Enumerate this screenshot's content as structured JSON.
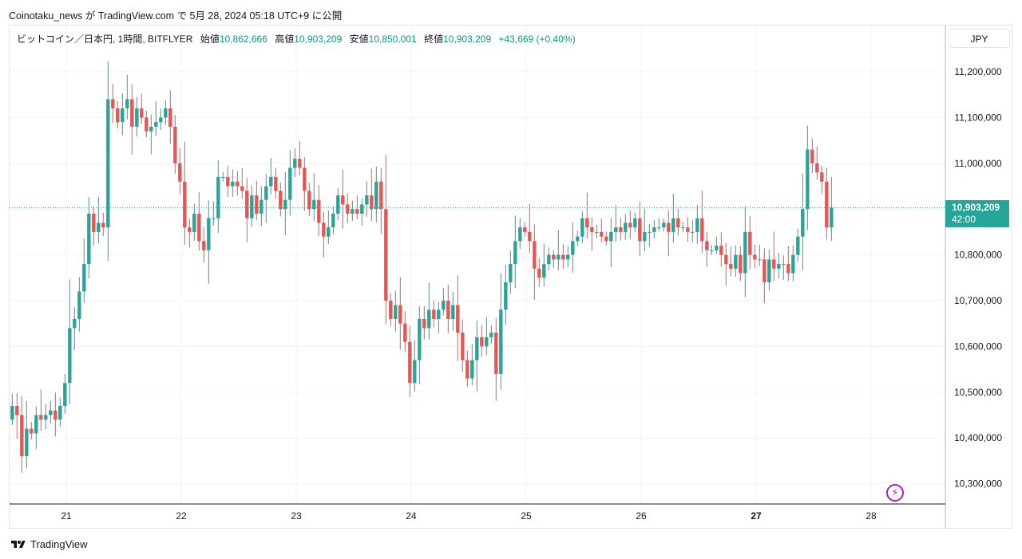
{
  "header": {
    "publisher_line": "Coinotaku_news が TradingView.com で 5月 28, 2024 05:18 UTC+9 に公開"
  },
  "legend": {
    "symbol": "ビットコイン／日本円, 1時間, BITFLYER",
    "open_label": "始値",
    "open": "10,862,666",
    "high_label": "高値",
    "high": "10,903,209",
    "low_label": "安値",
    "low": "10,850,001",
    "close_label": "終値",
    "close": "10,903,209",
    "change": "+43,669 (+0.40%)"
  },
  "currency": "JPY",
  "last_price": {
    "price": "10,903,209",
    "countdown": "42:00"
  },
  "footer": {
    "brand": "TradingView"
  },
  "colors": {
    "up": "#26a69a",
    "down": "#ef5350",
    "grid": "#f0f3fa",
    "axis_text": "#131722",
    "price_line": "#26a69a"
  },
  "chart_data": {
    "type": "candlestick",
    "timeframe": "1h",
    "ylim": [
      10250000,
      11300000
    ],
    "y_ticks": [
      11200000,
      11100000,
      11000000,
      10900000,
      10800000,
      10700000,
      10600000,
      10500000,
      10400000,
      10300000
    ],
    "y_tick_labels": [
      "11,200,000",
      "11,100,000",
      "11,000,000",
      "10,900,000",
      "10,800,000",
      "10,700,000",
      "10,600,000",
      "10,500,000",
      "10,400,000",
      "10,300,000"
    ],
    "x_ticks": [
      {
        "label": "21",
        "day": 21,
        "bold": false
      },
      {
        "label": "22",
        "day": 22,
        "bold": false
      },
      {
        "label": "23",
        "day": 23,
        "bold": false
      },
      {
        "label": "24",
        "day": 24,
        "bold": false
      },
      {
        "label": "25",
        "day": 25,
        "bold": false
      },
      {
        "label": "26",
        "day": 26,
        "bold": false
      },
      {
        "label": "27",
        "day": 27,
        "bold": true
      },
      {
        "label": "28",
        "day": 28,
        "bold": false
      }
    ],
    "start_day": 20.53,
    "closes": [
      10470000,
      10450000,
      10360000,
      10420000,
      10410000,
      10450000,
      10440000,
      10450000,
      10460000,
      10440000,
      10470000,
      10520000,
      10640000,
      10660000,
      10720000,
      10780000,
      10890000,
      10850000,
      10870000,
      10860000,
      11140000,
      11120000,
      11090000,
      11120000,
      11140000,
      11080000,
      11120000,
      11100000,
      11070000,
      11080000,
      11090000,
      11100000,
      11120000,
      11080000,
      11000000,
      10960000,
      10860000,
      10850000,
      10890000,
      10830000,
      10810000,
      10880000,
      10880000,
      10970000,
      10970000,
      10950000,
      10960000,
      10950000,
      10940000,
      10880000,
      10930000,
      10890000,
      10920000,
      10950000,
      10970000,
      10940000,
      10900000,
      10920000,
      10990000,
      11010000,
      10990000,
      10940000,
      10900000,
      10920000,
      10870000,
      10840000,
      10860000,
      10890000,
      10930000,
      10910000,
      10890000,
      10900000,
      10890000,
      10910000,
      10930000,
      10900000,
      10960000,
      10900000,
      10700000,
      10660000,
      10690000,
      10650000,
      10610000,
      10520000,
      10570000,
      10660000,
      10640000,
      10680000,
      10660000,
      10680000,
      10700000,
      10660000,
      10690000,
      10630000,
      10570000,
      10530000,
      10570000,
      10620000,
      10600000,
      10620000,
      10630000,
      10540000,
      10680000,
      10740000,
      10780000,
      10830000,
      10860000,
      10850000,
      10830000,
      10770000,
      10750000,
      10780000,
      10800000,
      10790000,
      10800000,
      10790000,
      10800000,
      10830000,
      10840000,
      10880000,
      10860000,
      10850000,
      10850000,
      10840000,
      10830000,
      10850000,
      10860000,
      10850000,
      10870000,
      10860000,
      10880000,
      10830000,
      10850000,
      10850000,
      10860000,
      10860000,
      10870000,
      10850000,
      10880000,
      10860000,
      10860000,
      10850000,
      10850000,
      10880000,
      10830000,
      10810000,
      10810000,
      10820000,
      10800000,
      10780000,
      10770000,
      10800000,
      10760000,
      10850000,
      10800000,
      10790000,
      10790000,
      10740000,
      10790000,
      10770000,
      10780000,
      10780000,
      10760000,
      10800000,
      10840000,
      10900000,
      11030000,
      11000000,
      10980000,
      10960000,
      10860000,
      10903209
    ]
  }
}
